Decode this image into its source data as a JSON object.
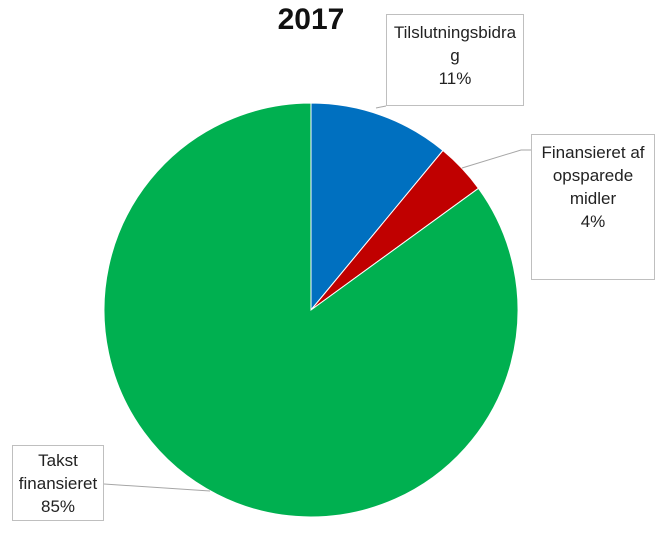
{
  "chart_data": {
    "type": "pie",
    "title": "2017",
    "categories": [
      "Tilslutningsbidrag",
      "Finansieret af opsparede midler",
      "Takst finansieret"
    ],
    "values": [
      11,
      4,
      85
    ],
    "value_labels": [
      "11%",
      "4%",
      "85%"
    ],
    "colors": [
      "#0070c0",
      "#c00000",
      "#00b050"
    ]
  }
}
